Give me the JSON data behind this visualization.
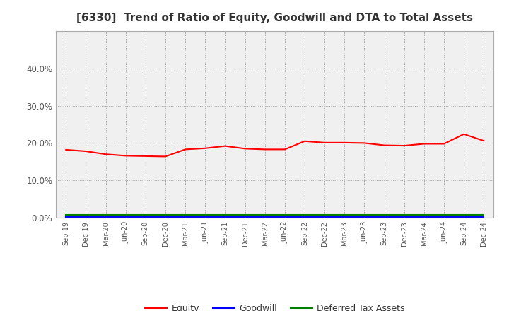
{
  "title": "[6330]  Trend of Ratio of Equity, Goodwill and DTA to Total Assets",
  "x_labels": [
    "Sep-19",
    "Dec-19",
    "Mar-20",
    "Jun-20",
    "Sep-20",
    "Dec-20",
    "Mar-21",
    "Jun-21",
    "Sep-21",
    "Dec-21",
    "Mar-22",
    "Jun-22",
    "Sep-22",
    "Dec-22",
    "Mar-23",
    "Jun-23",
    "Sep-23",
    "Dec-23",
    "Mar-24",
    "Jun-24",
    "Sep-24",
    "Dec-24"
  ],
  "equity": [
    0.182,
    0.178,
    0.17,
    0.166,
    0.165,
    0.164,
    0.183,
    0.186,
    0.192,
    0.185,
    0.183,
    0.183,
    0.205,
    0.201,
    0.201,
    0.2,
    0.194,
    0.193,
    0.198,
    0.198,
    0.224,
    0.206
  ],
  "goodwill": [
    0.001,
    0.001,
    0.001,
    0.001,
    0.001,
    0.001,
    0.001,
    0.001,
    0.001,
    0.001,
    0.001,
    0.001,
    0.001,
    0.001,
    0.001,
    0.001,
    0.001,
    0.001,
    0.001,
    0.001,
    0.001,
    0.001
  ],
  "dta": [
    0.007,
    0.007,
    0.007,
    0.007,
    0.007,
    0.007,
    0.007,
    0.007,
    0.007,
    0.007,
    0.007,
    0.007,
    0.007,
    0.007,
    0.007,
    0.007,
    0.007,
    0.007,
    0.007,
    0.007,
    0.007,
    0.007
  ],
  "equity_color": "#ff0000",
  "goodwill_color": "#0000ff",
  "dta_color": "#008000",
  "ylim": [
    0.0,
    0.5
  ],
  "yticks": [
    0.0,
    0.1,
    0.2,
    0.3,
    0.4
  ],
  "background_color": "#ffffff",
  "plot_bg_color": "#f0f0f0",
  "grid_color": "#999999",
  "title_fontsize": 11,
  "legend_labels": [
    "Equity",
    "Goodwill",
    "Deferred Tax Assets"
  ]
}
